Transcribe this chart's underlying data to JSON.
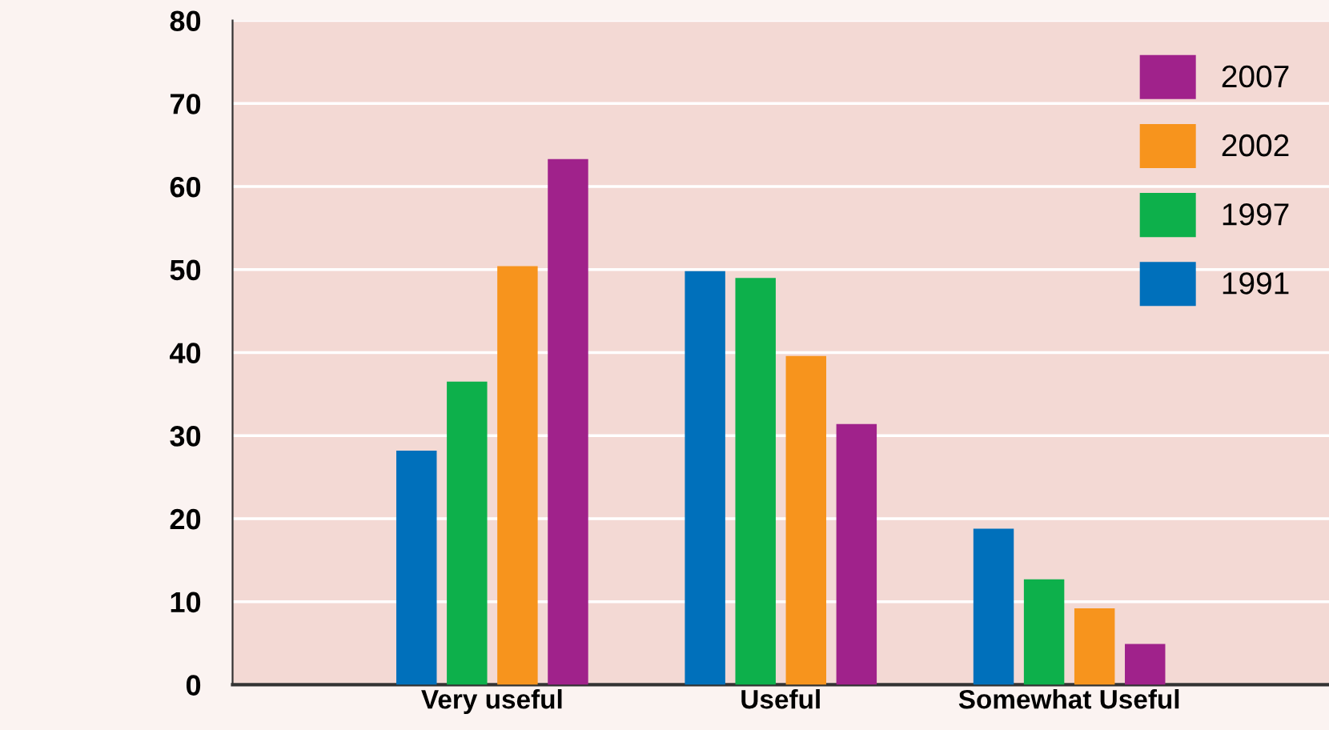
{
  "chart_data": {
    "type": "bar",
    "categories": [
      "Very useful",
      "Useful",
      "Somewhat Useful"
    ],
    "series": [
      {
        "name": "1991",
        "color": "#0070bb",
        "values": [
          28.2,
          49.8,
          18.8
        ]
      },
      {
        "name": "1997",
        "color": "#0db04b",
        "values": [
          36.5,
          49.0,
          12.7
        ]
      },
      {
        "name": "2002",
        "color": "#f7941d",
        "values": [
          50.4,
          39.6,
          9.2
        ]
      },
      {
        "name": "2007",
        "color": "#a0228b",
        "values": [
          63.3,
          31.4,
          4.9
        ]
      }
    ],
    "ylim": [
      0,
      80
    ],
    "yticks": [
      0,
      10,
      20,
      30,
      40,
      50,
      60,
      70,
      80
    ],
    "grid": "y",
    "legend": "top right"
  }
}
